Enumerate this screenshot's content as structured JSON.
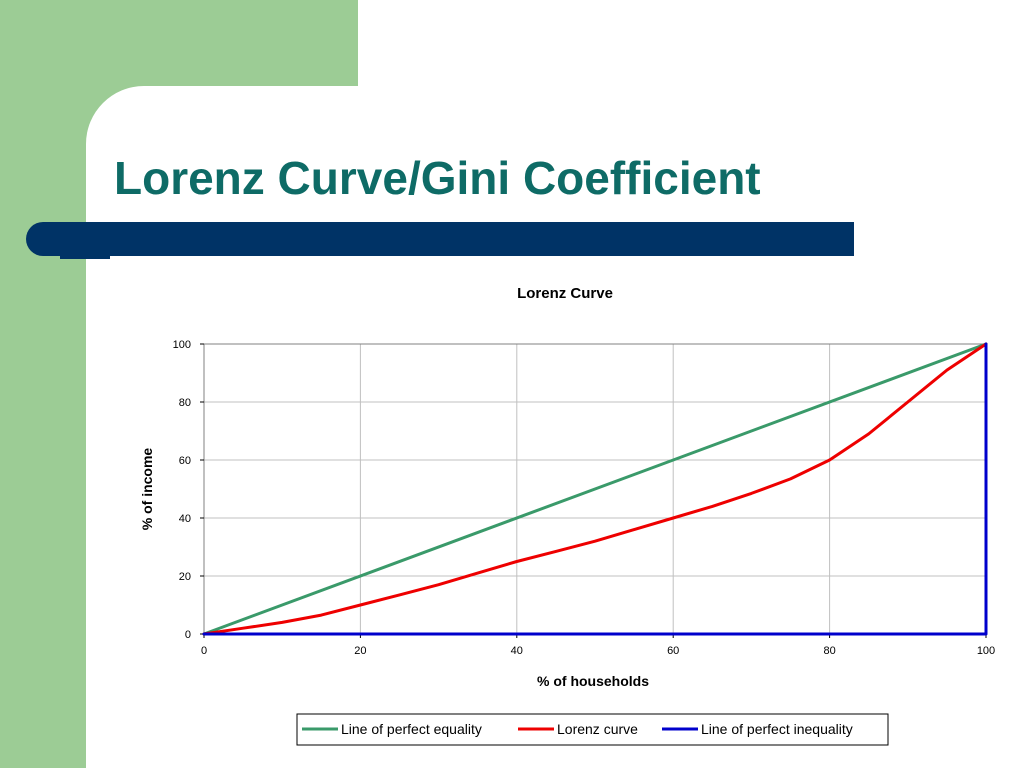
{
  "slide": {
    "title": "Lorenz Curve/Gini Coefficient",
    "colors": {
      "left_panel": "#9ccc95",
      "title_text": "#0e6b66",
      "title_bar": "#003366"
    }
  },
  "chart_data": {
    "type": "line",
    "title": "Lorenz Curve",
    "xlabel": "% of households",
    "ylabel": "% of income",
    "xlim": [
      0,
      100
    ],
    "ylim": [
      0,
      100
    ],
    "xticks": [
      0,
      20,
      40,
      60,
      80,
      100
    ],
    "yticks": [
      0,
      20,
      40,
      60,
      80,
      100
    ],
    "grid": true,
    "legend_position": "bottom",
    "series": [
      {
        "name": "Line of perfect equality",
        "color": "#3a9a6a",
        "points": [
          [
            0,
            0
          ],
          [
            100,
            100
          ]
        ]
      },
      {
        "name": "Lorenz curve",
        "color": "#ee0000",
        "points": [
          [
            0,
            0
          ],
          [
            5,
            2
          ],
          [
            10,
            4
          ],
          [
            15,
            6.5
          ],
          [
            20,
            10
          ],
          [
            25,
            13.5
          ],
          [
            30,
            17
          ],
          [
            35,
            21
          ],
          [
            40,
            25
          ],
          [
            45,
            28.5
          ],
          [
            50,
            32
          ],
          [
            55,
            36
          ],
          [
            60,
            40
          ],
          [
            65,
            44
          ],
          [
            70,
            48.5
          ],
          [
            75,
            53.5
          ],
          [
            80,
            60
          ],
          [
            85,
            69
          ],
          [
            90,
            80
          ],
          [
            95,
            91
          ],
          [
            100,
            100
          ]
        ]
      },
      {
        "name": "Line of perfect inequality",
        "color": "#0000cc",
        "points": [
          [
            0,
            0
          ],
          [
            100,
            0
          ],
          [
            100,
            100
          ]
        ]
      }
    ]
  }
}
